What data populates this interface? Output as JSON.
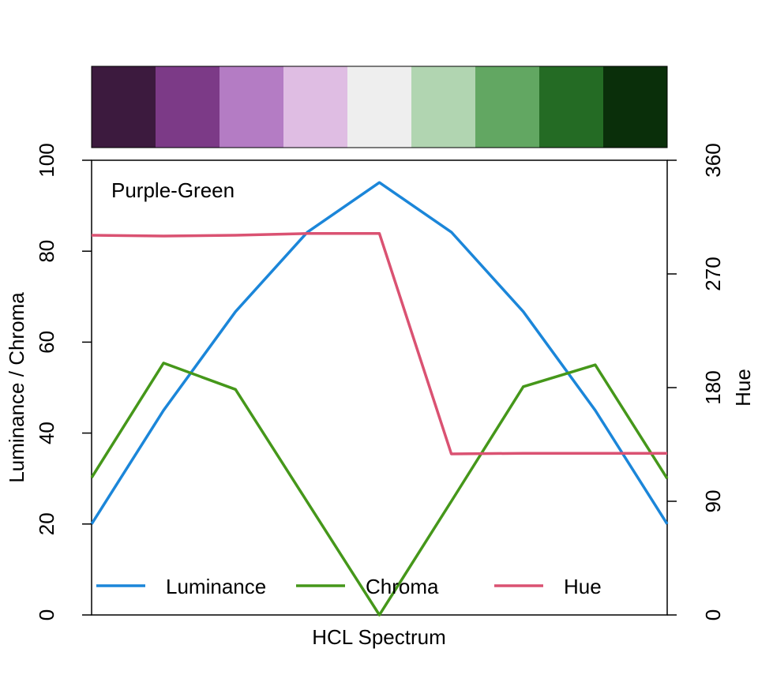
{
  "chart_data": {
    "type": "line",
    "title": "Purple-Green",
    "xlabel": "HCL Spectrum",
    "ylabel": "Luminance / Chroma",
    "ylabel_right": "Hue",
    "ylim": [
      0,
      100
    ],
    "ylim_right": [
      0,
      360
    ],
    "yticks": [
      "0",
      "20",
      "40",
      "60",
      "80",
      "100"
    ],
    "yticks_right": [
      "0",
      "90",
      "180",
      "270",
      "360"
    ],
    "x": [
      1,
      2,
      3,
      4,
      5,
      6,
      7,
      8,
      9
    ],
    "palette": [
      "#3C1A3E",
      "#7C3A87",
      "#B47CC4",
      "#DFBDE3",
      "#EEEEEE",
      "#B1D5B1",
      "#62A762",
      "#246B24",
      "#0A2F0A"
    ],
    "series": [
      {
        "name": "Luminance",
        "axis": "left",
        "color": "#1B86D9",
        "values": [
          20,
          45,
          66.7,
          84.2,
          95.1,
          84.2,
          66.7,
          45,
          20
        ]
      },
      {
        "name": "Chroma",
        "axis": "left",
        "color": "#45971A",
        "values": [
          30.2,
          55.4,
          49.6,
          24.8,
          0,
          25,
          50.2,
          55,
          30
        ]
      },
      {
        "name": "Hue",
        "axis": "right",
        "color": "#DA5272",
        "values": [
          300.6,
          300,
          300.6,
          302,
          302,
          127.5,
          128,
          128,
          128
        ]
      }
    ],
    "legend": {
      "placement": "bottom",
      "entries": [
        "Luminance",
        "Chroma",
        "Hue"
      ]
    }
  }
}
